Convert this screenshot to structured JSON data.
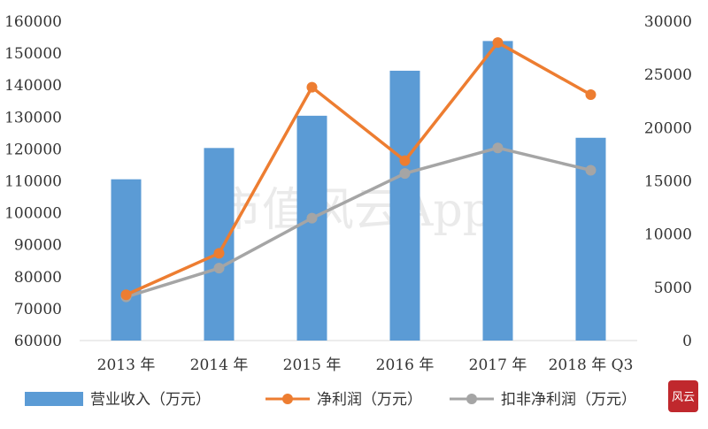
{
  "chart_data": {
    "type": "bar",
    "categories": [
      "2013 年",
      "2014 年",
      "2015 年",
      "2016 年",
      "2017 年",
      "2018 年 Q3"
    ],
    "series": [
      {
        "name": "营业收入（万元）",
        "type": "bar",
        "axis": "left",
        "color": "#5b9bd5",
        "values": [
          110500,
          120300,
          130400,
          144500,
          153800,
          123500
        ]
      },
      {
        "name": "净利润（万元）",
        "type": "line",
        "axis": "right",
        "color": "#ed7d31",
        "values": [
          4300,
          8200,
          23800,
          16900,
          28000,
          23100
        ]
      },
      {
        "name": "扣非净利润（万元）",
        "type": "line",
        "axis": "right",
        "color": "#a5a5a5",
        "values": [
          4100,
          6800,
          11500,
          15700,
          18100,
          16000
        ]
      }
    ],
    "left_axis": {
      "min": 60000,
      "max": 160000,
      "step": 10000,
      "ticks": [
        "60000",
        "70000",
        "80000",
        "90000",
        "100000",
        "110000",
        "120000",
        "130000",
        "140000",
        "150000",
        "160000"
      ]
    },
    "right_axis": {
      "min": 0,
      "max": 30000,
      "step": 5000,
      "ticks": [
        "0",
        "5000",
        "10000",
        "15000",
        "20000",
        "25000",
        "30000"
      ]
    },
    "legend_position": "bottom",
    "grid": false
  },
  "watermark": "市值风云App",
  "seal": "风云"
}
